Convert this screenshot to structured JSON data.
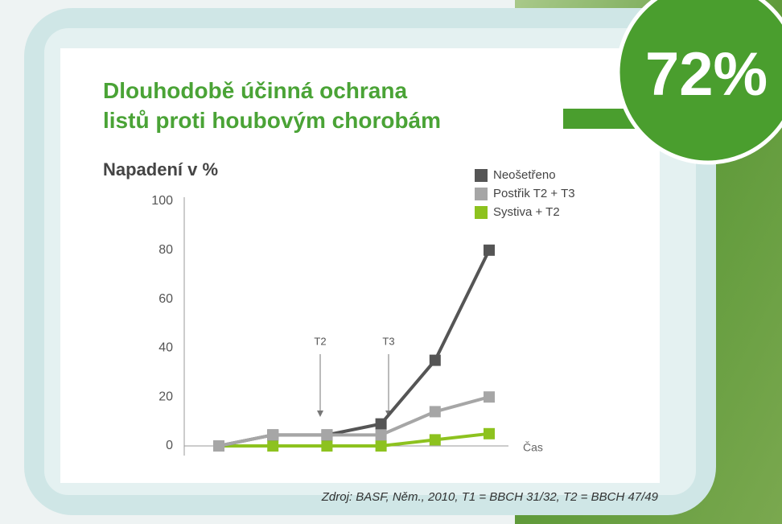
{
  "badge": "72%",
  "chart_data": {
    "type": "line",
    "title": "Dlouhodobě účinná ochrana listů proti houbovým chorobám",
    "y_label": "Napadení v %",
    "x_label": "Čas",
    "categories": [
      null,
      null,
      null,
      null,
      null,
      null
    ],
    "series": [
      {
        "name": "Neošetřeno",
        "color": "#555555",
        "values": [
          0,
          4.5,
          4.5,
          9,
          35,
          80
        ]
      },
      {
        "name": "Postřik T2 + T3",
        "color": "#a6a6a6",
        "values": [
          0,
          4.5,
          4.5,
          4.5,
          14,
          20
        ]
      },
      {
        "name": "Systiva + T2",
        "color": "#8dc21f",
        "values": [
          0,
          0,
          0,
          0,
          2.5,
          5
        ]
      }
    ],
    "ylim": [
      0,
      100
    ],
    "yticks": [
      0,
      20,
      40,
      60,
      80,
      100
    ],
    "annotations": [
      "T2",
      "T3"
    ],
    "source": "Zdroj: BASF, Něm., 2010, T1 = BBCH 31/32, T2 = BBCH 47/49"
  }
}
